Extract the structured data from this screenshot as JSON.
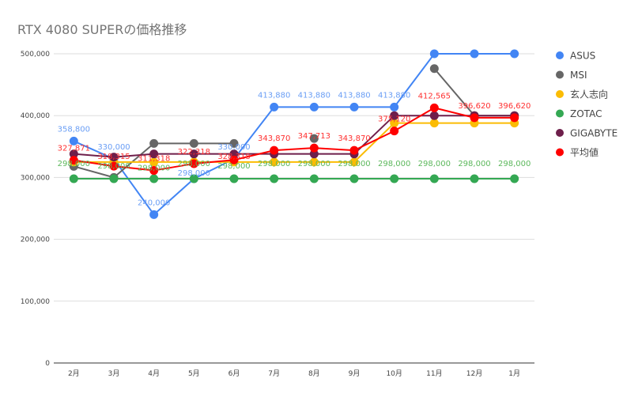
{
  "chart_data": {
    "type": "line",
    "title": "RTX 4080 SUPERの価格推移",
    "xlabel": "",
    "ylabel": "",
    "categories": [
      "2月",
      "3月",
      "4月",
      "5月",
      "6月",
      "7月",
      "8月",
      "9月",
      "10月",
      "11月",
      "12月",
      "1月"
    ],
    "ylim": [
      0,
      500000
    ],
    "yticks": [
      "0",
      "100,000",
      "200,000",
      "300,000",
      "400,000",
      "500,000"
    ],
    "ytick_values": [
      0,
      100000,
      200000,
      300000,
      400000,
      500000
    ],
    "grid": true,
    "legend": "right",
    "series": [
      {
        "name": "ASUS",
        "color": "#4285f4",
        "values": [
          358800,
          330000,
          240000,
          298000,
          330000,
          413880,
          413880,
          413880,
          413880,
          500000,
          500000,
          500000
        ],
        "labels": [
          "358,800",
          "330,000",
          "240,000",
          "298,000",
          "330,000",
          "413,880",
          "413,880",
          "413,880",
          "413,880",
          null,
          null,
          null
        ]
      },
      {
        "name": "MSI",
        "color": "#666666",
        "values": [
          318000,
          300000,
          355000,
          355000,
          355000,
          null,
          363000,
          null,
          null,
          476000,
          400000,
          400000
        ],
        "labels": []
      },
      {
        "name": "玄人志向",
        "color": "#fbbc04",
        "values": [
          325000,
          325000,
          325000,
          325000,
          325000,
          325000,
          325000,
          325000,
          388000,
          388000,
          388000,
          388000
        ],
        "labels": []
      },
      {
        "name": "ZOTAC",
        "color": "#34a853",
        "values": [
          298000,
          298000,
          298000,
          298000,
          298000,
          298000,
          298000,
          298000,
          298000,
          298000,
          298000,
          298000
        ],
        "labels": [
          "298,000",
          "298,000",
          "298,000",
          "298,000",
          "298,000",
          "298,000",
          "298,000",
          "298,000",
          "298,000",
          "298,000",
          "298,000",
          "298,000"
        ]
      },
      {
        "name": "GIGABYTE",
        "color": "#6e1f4b",
        "values": [
          338000,
          333000,
          338000,
          338000,
          338000,
          338000,
          338000,
          338000,
          400000,
          400000,
          400000,
          400000
        ],
        "labels": []
      },
      {
        "name": "平均値",
        "color": "#ff0000",
        "values": [
          327871,
          318315,
          311318,
          322318,
          328318,
          343870,
          347713,
          343870,
          375120,
          412565,
          396620,
          396620
        ],
        "labels": [
          "327,871",
          "318,315",
          "311,318",
          "322,318",
          "328,318",
          "343,870",
          "347,713",
          "343,870",
          "375,120",
          "412,565",
          "396,620",
          "396,620"
        ]
      }
    ]
  }
}
